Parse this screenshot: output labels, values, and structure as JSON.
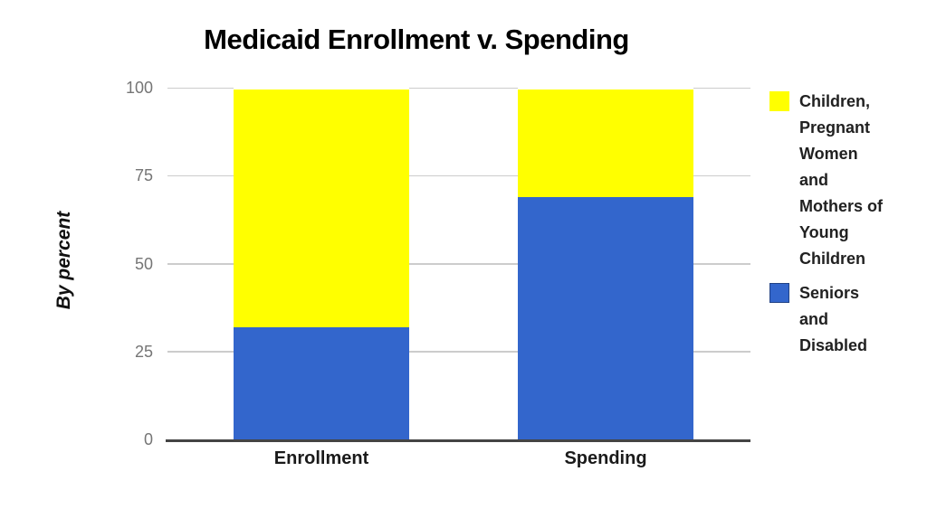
{
  "title": "Medicaid Enrollment v. Spending",
  "chart_data": {
    "type": "bar",
    "stacked": true,
    "title": "Medicaid Enrollment v. Spending",
    "categories": [
      "Enrollment",
      "Spending"
    ],
    "series": [
      {
        "name": "Seniors and Disabled",
        "color": "#3366CC",
        "values": [
          32,
          69
        ]
      },
      {
        "name": "Children, Pregnant Women and Mothers of Young Children",
        "color": "#FFFF00",
        "values": [
          68,
          31
        ]
      }
    ],
    "xlabel": "",
    "ylabel": "By percent",
    "ylim": [
      0,
      100
    ],
    "yticks": [
      0,
      25,
      50,
      75,
      100
    ],
    "grid": true,
    "legend_position": "right"
  },
  "legend": {
    "items": [
      {
        "label": "Children, Pregnant Women and Mothers of Young Children",
        "lines": [
          "Children,",
          "Pregnant",
          "Women",
          "and",
          "Mothers of",
          "Young",
          "Children"
        ],
        "color": "#FFFF00",
        "bordered": false
      },
      {
        "label": "Seniors and Disabled",
        "lines": [
          "Seniors",
          "and",
          "Disabled"
        ],
        "color": "#3366CC",
        "bordered": true
      }
    ]
  },
  "colors": {
    "children_series": "#FFFF00",
    "seniors_series": "#3366CC",
    "gridline": "#CCCCCC",
    "axis_line": "#444444",
    "tick_label": "#757575",
    "label_text": "#1A1A1A"
  }
}
